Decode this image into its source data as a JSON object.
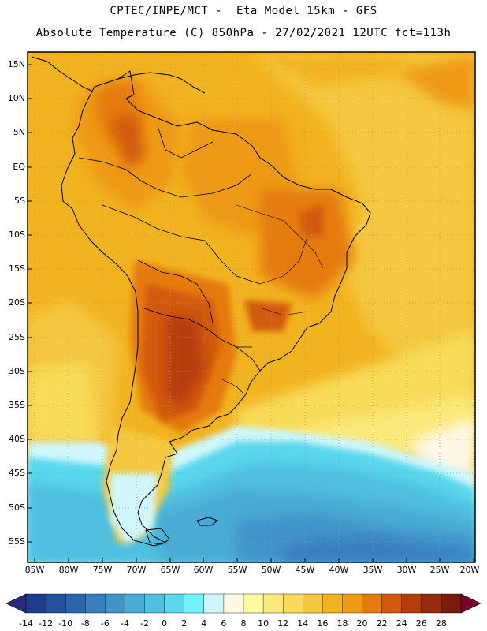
{
  "title": {
    "line1": "CPTEC/INPE/MCT -  Eta Model 15km - GFS",
    "line2": "Absolute Temperature (C) 850hPa - 27/02/2021 12UTC fct=113h"
  },
  "axes": {
    "latitudes": [
      "15N",
      "10N",
      "5N",
      "EQ",
      "5S",
      "10S",
      "15S",
      "20S",
      "25S",
      "30S",
      "35S",
      "40S",
      "45S",
      "50S",
      "55S"
    ],
    "longitudes": [
      "85W",
      "80W",
      "75W",
      "70W",
      "65W",
      "60W",
      "55W",
      "50W",
      "45W",
      "40W",
      "35W",
      "30W",
      "25W",
      "20W"
    ]
  },
  "colorbar": {
    "labels": [
      "-14",
      "-12",
      "-10",
      "-8",
      "-6",
      "-4",
      "-2",
      "0",
      "2",
      "4",
      "6",
      "8",
      "10",
      "12",
      "14",
      "16",
      "18",
      "20",
      "22",
      "24",
      "26",
      "28"
    ],
    "colors": [
      "#1e3c8c",
      "#24509f",
      "#2d64ae",
      "#3a7ebf",
      "#3f94c8",
      "#49abd6",
      "#50c0e0",
      "#5ad8ec",
      "#70f4f8",
      "#cff7fb",
      "#fff8e6",
      "#fffaa0",
      "#fbe97a",
      "#f8dc5a",
      "#f4c840",
      "#f2b320",
      "#ee9a14",
      "#e57a10",
      "#d25a0c",
      "#b63d0a",
      "#962a0a",
      "#7a1a0a"
    ],
    "under_color": "#2a2a80",
    "over_color": "#7a0030"
  }
}
